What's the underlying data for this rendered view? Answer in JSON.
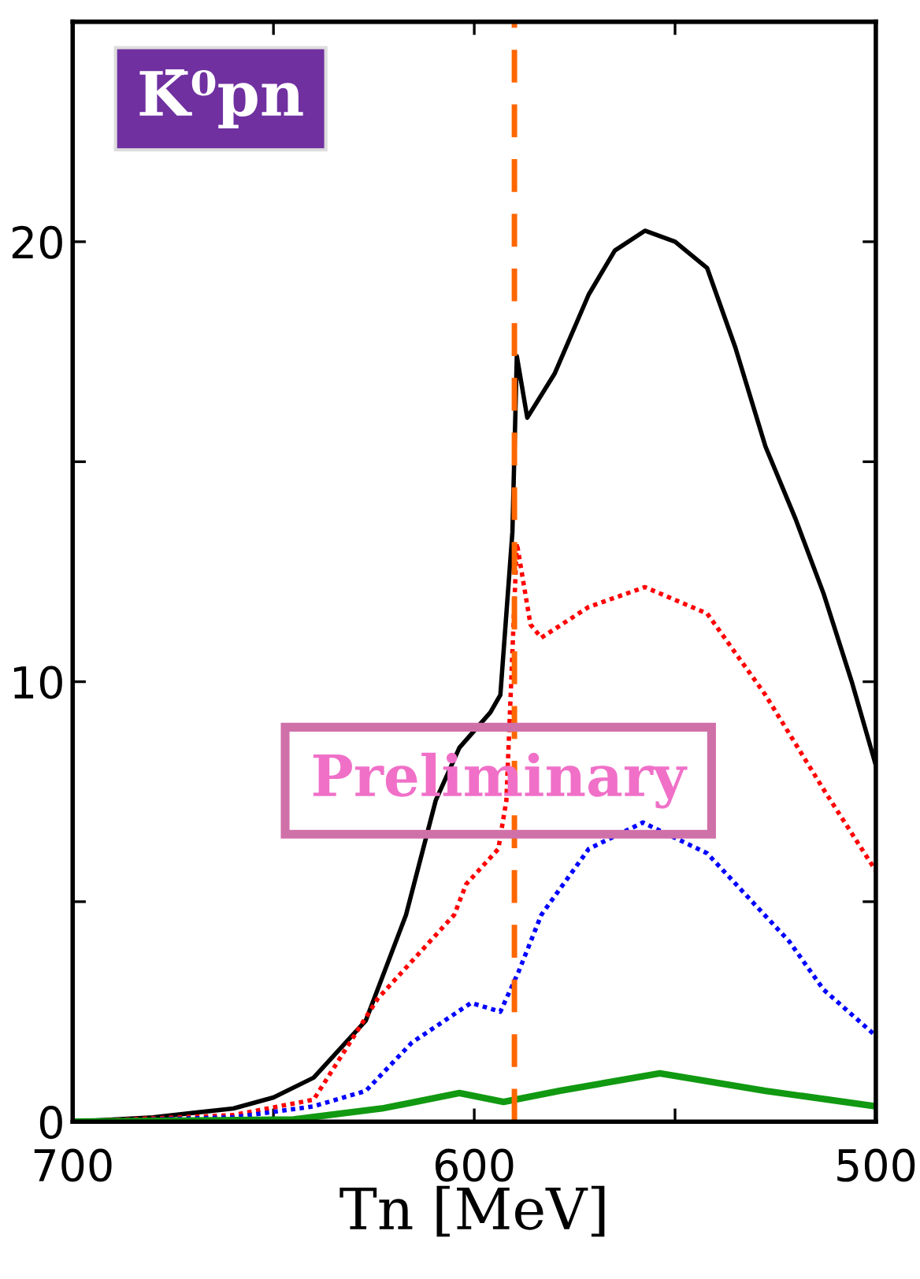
{
  "chart_data": {
    "type": "line",
    "xlabel": "Tn [MeV]",
    "annotations": [
      "K̄⁰pn",
      "Preliminary"
    ],
    "xlim": [
      700,
      500
    ],
    "xticks": [
      700,
      {
        "value": 650,
        "label": null
      },
      600,
      {
        "value": 550,
        "label": null
      },
      500
    ],
    "ylim": [
      0,
      25
    ],
    "yticks": [
      0,
      {
        "value": 5,
        "label": null
      },
      10,
      {
        "value": 15,
        "label": null
      },
      20
    ],
    "grid": false,
    "legend": false,
    "ref_lines": [
      {
        "axis": "x",
        "value": 590,
        "color": "#ff6600",
        "line_style": "dashed"
      }
    ],
    "series": [
      {
        "color": "#000000",
        "line_style": "solid",
        "x": [
          700,
          680,
          660,
          650,
          640,
          627,
          617,
          609.6,
          603.7,
          596,
          593.5,
          590.5,
          589.4,
          586.8,
          580,
          571.5,
          565,
          557.5,
          550,
          542,
          535,
          527.5,
          520,
          513,
          506,
          500
        ],
        "values": [
          0,
          0.1,
          0.3,
          0.55,
          1,
          2.3,
          4.7,
          7.3,
          8.5,
          9.3,
          9.7,
          13.4,
          17.4,
          16.0,
          17.0,
          18.8,
          19.8,
          20.25,
          20.0,
          19.4,
          17.6,
          15.35,
          13.7,
          12.0,
          10.0,
          8.1
        ]
      },
      {
        "color": "#ff0000",
        "line_style": "dotted",
        "x": [
          700,
          660,
          640,
          624,
          605,
          602,
          594,
          592,
          589.4,
          586,
          583.3,
          571.5,
          557.5,
          542,
          527.5,
          513,
          500
        ],
        "values": [
          0,
          0.15,
          0.5,
          2.8,
          4.7,
          5.4,
          6.2,
          7.3,
          13.15,
          11.3,
          11.0,
          11.7,
          12.15,
          11.55,
          9.7,
          7.55,
          5.7
        ]
      },
      {
        "color": "#0000ff",
        "line_style": "dotted",
        "x": [
          700,
          660,
          640,
          627,
          615.5,
          600.8,
          593.5,
          589,
          583.3,
          571.5,
          558,
          542,
          521.6,
          513,
          500
        ],
        "values": [
          0,
          0.1,
          0.35,
          0.7,
          1.8,
          2.7,
          2.5,
          3.4,
          4.7,
          6.2,
          6.8,
          6.1,
          4.1,
          3.0,
          1.95
        ]
      },
      {
        "color": "#119911",
        "line_style": "solid",
        "x": [
          700,
          645,
          623,
          603.7,
          592.7,
          578.8,
          553.8,
          527.5,
          500
        ],
        "values": [
          0,
          0.05,
          0.3,
          0.65,
          0.45,
          0.7,
          1.1,
          0.7,
          0.35
        ]
      }
    ]
  }
}
